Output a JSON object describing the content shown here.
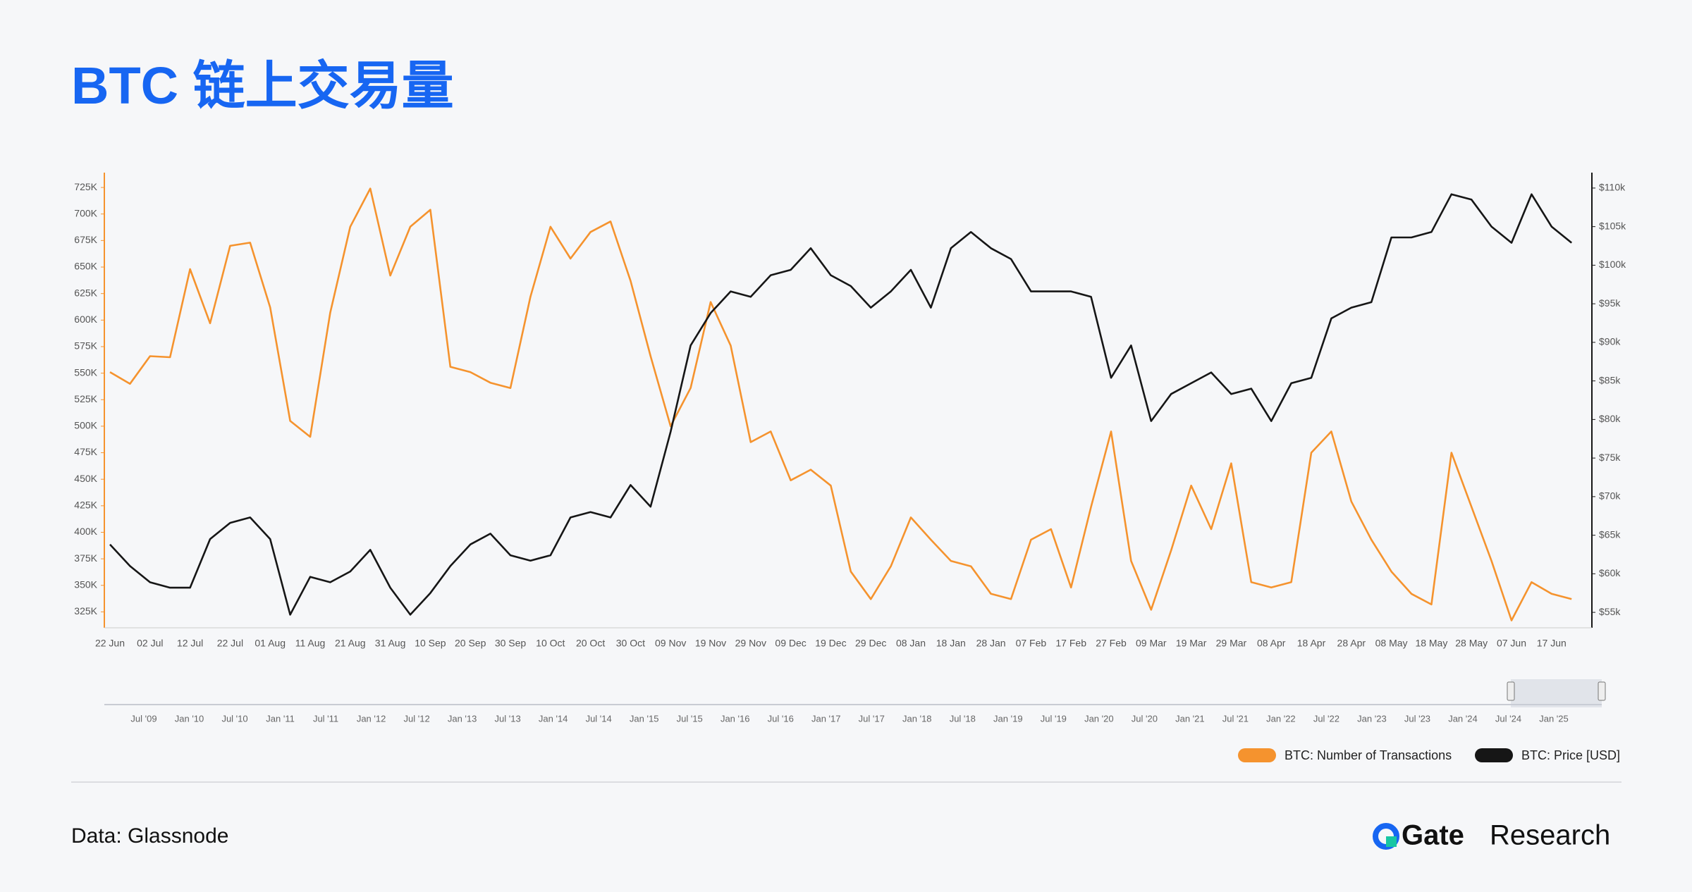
{
  "chart_data": {
    "type": "line",
    "title": "BTC 链上交易量",
    "categories": [
      "22 Jun",
      null,
      "02 Jul",
      null,
      "12 Jul",
      null,
      "22 Jul",
      null,
      "01 Aug",
      null,
      "11 Aug",
      null,
      "21 Aug",
      null,
      "31 Aug",
      null,
      "10 Sep",
      null,
      "20 Sep",
      null,
      "30 Sep",
      null,
      "10 Oct",
      null,
      "20 Oct",
      null,
      "30 Oct",
      null,
      "09 Nov",
      null,
      "19 Nov",
      null,
      "29 Nov",
      null,
      "09 Dec",
      null,
      "19 Dec",
      null,
      "29 Dec",
      null,
      "08 Jan",
      null,
      "18 Jan",
      null,
      "28 Jan",
      null,
      "07 Feb",
      null,
      "17 Feb",
      null,
      "27 Feb",
      null,
      "09 Mar",
      null,
      "19 Mar",
      null,
      "29 Mar",
      null,
      "08 Apr",
      null,
      "18 Apr",
      null,
      "28 Apr",
      null,
      "08 May",
      null,
      "18 May",
      null,
      "28 May",
      null,
      "07 Jun",
      null,
      "17 Jun",
      null
    ],
    "series": [
      {
        "name": "BTC: Number of Transactions",
        "color": "#f5932e",
        "values": [
          551000,
          540000,
          566000,
          565000,
          648000,
          597000,
          670000,
          673000,
          612000,
          505000,
          490000,
          607000,
          688000,
          724000,
          642000,
          688000,
          704000,
          556000,
          551000,
          541000,
          536000,
          622000,
          688000,
          658000,
          683000,
          693000,
          637000,
          566000,
          500000,
          536000,
          617000,
          576000,
          485000,
          495000,
          449000,
          459000,
          444000,
          363000,
          337000,
          368000,
          414000,
          393000,
          373000,
          368000,
          342000,
          337000,
          393000,
          403000,
          348000,
          424000,
          495000,
          373000,
          327000,
          383000,
          444000,
          403000,
          465000,
          353000,
          348000,
          353000,
          475000,
          495000,
          429000,
          393000,
          363000,
          342000,
          332000,
          475000,
          424000,
          373000,
          317000,
          353000,
          342000,
          337000
        ]
      },
      {
        "name": "BTC: Price [USD]",
        "color": "#161616",
        "axis": "y2",
        "values": [
          63800,
          61000,
          58900,
          58200,
          58200,
          64500,
          66600,
          67300,
          64500,
          54700,
          59600,
          58900,
          60300,
          63100,
          58200,
          54700,
          57500,
          61000,
          63800,
          65200,
          62400,
          61700,
          62400,
          67300,
          68000,
          67300,
          71500,
          68700,
          78400,
          89600,
          93800,
          96600,
          95900,
          98700,
          99400,
          102200,
          98700,
          97300,
          94500,
          96600,
          99400,
          94500,
          102200,
          104300,
          102200,
          100800,
          96600,
          96600,
          96600,
          95900,
          85400,
          89600,
          79800,
          83300,
          84700,
          86100,
          83300,
          84000,
          79800,
          84700,
          85400,
          93100,
          94500,
          95200,
          103600,
          103600,
          104300,
          109200,
          108500,
          105000,
          102900,
          109200,
          105000,
          102900
        ]
      }
    ],
    "ylim": [
      310000,
      739000
    ],
    "yticks": [
      {
        "value": 325000,
        "label": "325K"
      },
      {
        "value": 350000,
        "label": "350K"
      },
      {
        "value": 375000,
        "label": "375K"
      },
      {
        "value": 400000,
        "label": "400K"
      },
      {
        "value": 425000,
        "label": "425K"
      },
      {
        "value": 450000,
        "label": "450K"
      },
      {
        "value": 475000,
        "label": "475K"
      },
      {
        "value": 500000,
        "label": "500K"
      },
      {
        "value": 525000,
        "label": "525K"
      },
      {
        "value": 550000,
        "label": "550K"
      },
      {
        "value": 575000,
        "label": "575K"
      },
      {
        "value": 600000,
        "label": "600K"
      },
      {
        "value": 625000,
        "label": "625K"
      },
      {
        "value": 650000,
        "label": "650K"
      },
      {
        "value": 675000,
        "label": "675K"
      },
      {
        "value": 700000,
        "label": "700K"
      },
      {
        "value": 725000,
        "label": "725K"
      }
    ],
    "y2lim": [
      53000,
      112000
    ],
    "y2ticks": [
      {
        "value": 55000,
        "label": "$55k"
      },
      {
        "value": 60000,
        "label": "$60k"
      },
      {
        "value": 65000,
        "label": "$65k"
      },
      {
        "value": 70000,
        "label": "$70k"
      },
      {
        "value": 75000,
        "label": "$75k"
      },
      {
        "value": 80000,
        "label": "$80k"
      },
      {
        "value": 85000,
        "label": "$85k"
      },
      {
        "value": 90000,
        "label": "$90k"
      },
      {
        "value": 95000,
        "label": "$95k"
      },
      {
        "value": 100000,
        "label": "$100k"
      },
      {
        "value": 105000,
        "label": "$105k"
      },
      {
        "value": 110000,
        "label": "$110k"
      }
    ],
    "grid": false,
    "legend": "bottom-right",
    "navigator_labels": [
      "Jul '09",
      "Jan '10",
      "Jul '10",
      "Jan '11",
      "Jul '11",
      "Jan '12",
      "Jul '12",
      "Jan '13",
      "Jul '13",
      "Jan '14",
      "Jul '14",
      "Jan '15",
      "Jul '15",
      "Jan '16",
      "Jul '16",
      "Jan '17",
      "Jul '17",
      "Jan '18",
      "Jul '18",
      "Jan '19",
      "Jul '19",
      "Jan '20",
      "Jul '20",
      "Jan '21",
      "Jul '21",
      "Jan '22",
      "Jul '22",
      "Jan '23",
      "Jul '23",
      "Jan '24",
      "Jul '24",
      "Jan '25"
    ]
  },
  "source": "Data: Glassnode",
  "brand": {
    "name": "Gate",
    "suffix": "Research"
  }
}
